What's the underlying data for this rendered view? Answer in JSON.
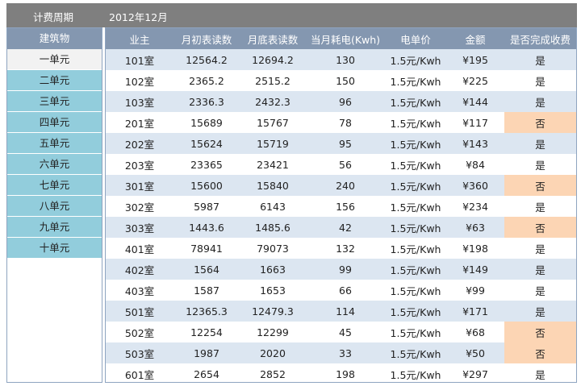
{
  "header": {
    "period_label": "计费周期",
    "period": "2012年12月"
  },
  "buildings": {
    "title": "建筑物",
    "items": [
      "一单元",
      "二单元",
      "三单元",
      "四单元",
      "五单元",
      "六单元",
      "七单元",
      "八单元",
      "九单元",
      "十单元"
    ]
  },
  "table": {
    "columns": [
      "业主",
      "月初表读数",
      "月底表读数",
      "当月耗电(Kwh)",
      "电单价",
      "金额",
      "是否完成收费"
    ],
    "rows": [
      [
        "101室",
        "12564.2",
        "12694.2",
        "130",
        "1.5元/Kwh",
        "¥195",
        "是"
      ],
      [
        "102室",
        "2365.2",
        "2515.2",
        "150",
        "1.5元/Kwh",
        "¥225",
        "是"
      ],
      [
        "103室",
        "2336.3",
        "2432.3",
        "96",
        "1.5元/Kwh",
        "¥144",
        "是"
      ],
      [
        "201室",
        "15689",
        "15767",
        "78",
        "1.5元/Kwh",
        "¥117",
        "否"
      ],
      [
        "202室",
        "15624",
        "15719",
        "95",
        "1.5元/Kwh",
        "¥143",
        "是"
      ],
      [
        "203室",
        "23365",
        "23421",
        "56",
        "1.5元/Kwh",
        "¥84",
        "是"
      ],
      [
        "301室",
        "15600",
        "15840",
        "240",
        "1.5元/Kwh",
        "¥360",
        "否"
      ],
      [
        "302室",
        "5987",
        "6143",
        "156",
        "1.5元/Kwh",
        "¥234",
        "是"
      ],
      [
        "303室",
        "1443.6",
        "1485.6",
        "42",
        "1.5元/Kwh",
        "¥63",
        "否"
      ],
      [
        "401室",
        "78941",
        "79073",
        "132",
        "1.5元/Kwh",
        "¥198",
        "是"
      ],
      [
        "402室",
        "1564",
        "1663",
        "99",
        "1.5元/Kwh",
        "¥149",
        "是"
      ],
      [
        "403室",
        "1587",
        "1653",
        "66",
        "1.5元/Kwh",
        "¥99",
        "是"
      ],
      [
        "501室",
        "12365.3",
        "12479.3",
        "114",
        "1.5元/Kwh",
        "¥171",
        "是"
      ],
      [
        "502室",
        "12254",
        "12299",
        "45",
        "1.5元/Kwh",
        "¥68",
        "否"
      ],
      [
        "503室",
        "1987",
        "2020",
        "33",
        "1.5元/Kwh",
        "¥50",
        "否"
      ],
      [
        "601室",
        "2654",
        "2852",
        "198",
        "1.5元/Kwh",
        "¥297",
        "是"
      ]
    ]
  }
}
